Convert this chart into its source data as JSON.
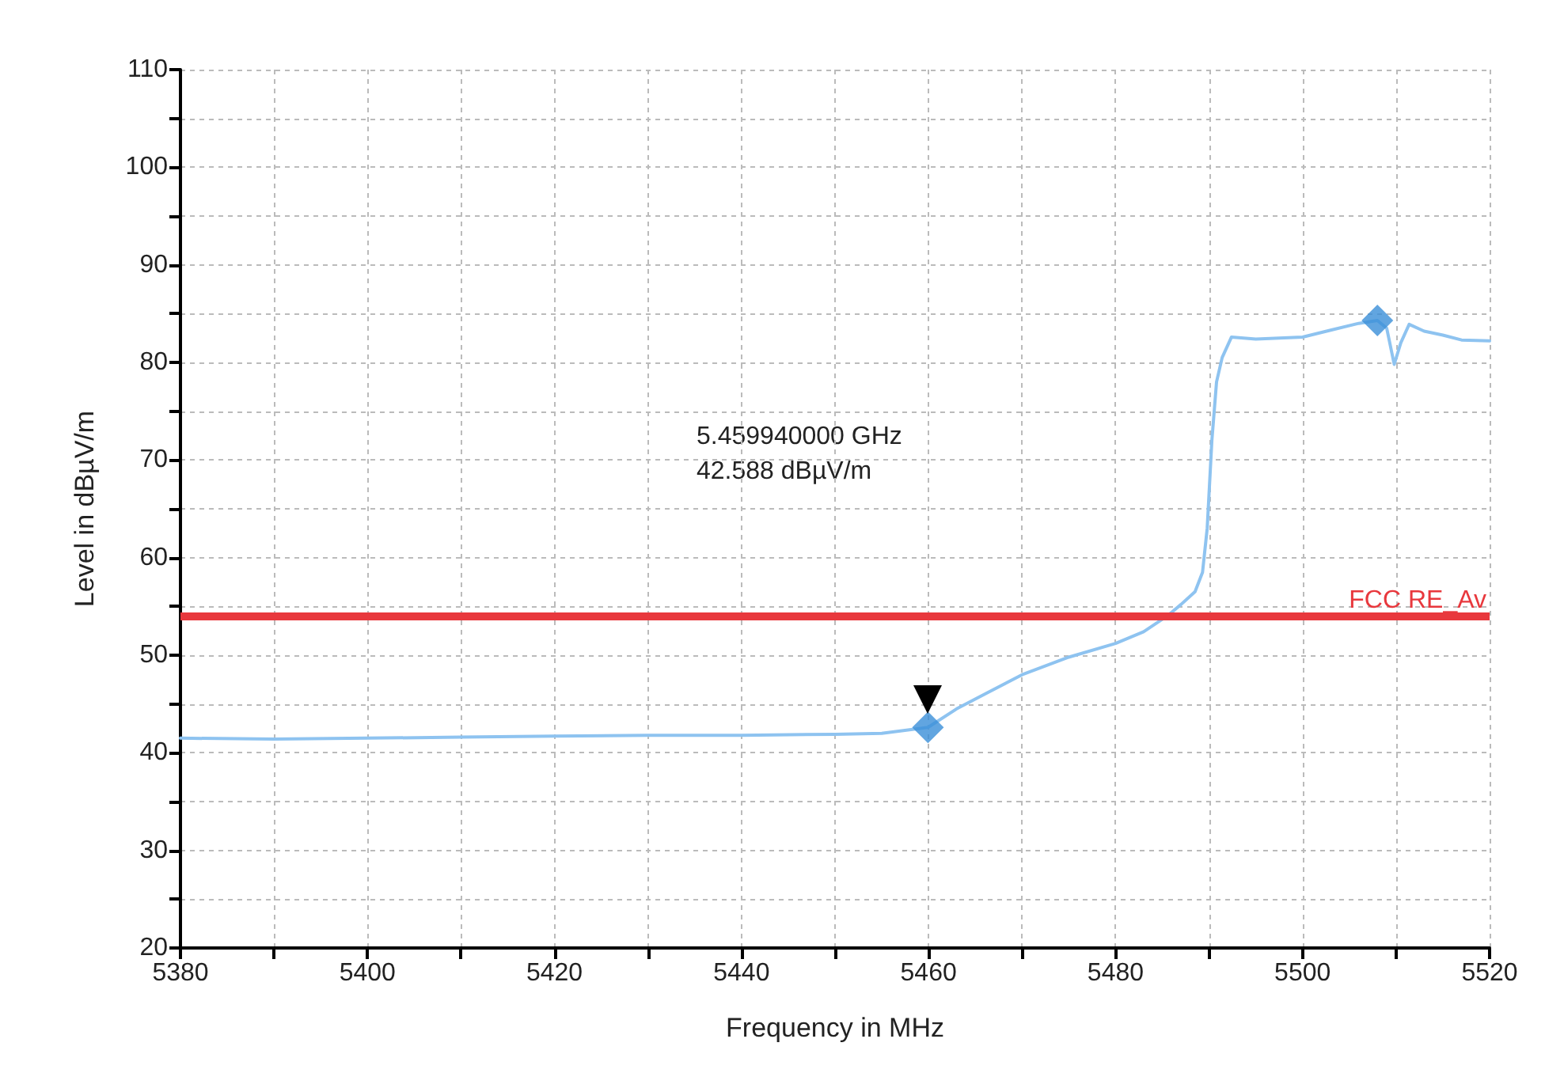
{
  "chart_data": {
    "type": "line",
    "xlabel": "Frequency in MHz",
    "ylabel": "Level in dBµV/m",
    "xlim": [
      5380,
      5520
    ],
    "ylim": [
      20,
      110
    ],
    "xticks": [
      5380,
      {
        "value": 5390,
        "label": null
      },
      5400,
      {
        "value": 5410,
        "label": null
      },
      5420,
      {
        "value": 5430,
        "label": null
      },
      5440,
      {
        "value": 5450,
        "label": null
      },
      5460,
      {
        "value": 5470,
        "label": null
      },
      5480,
      {
        "value": 5490,
        "label": null
      },
      5500,
      {
        "value": 5510,
        "label": null
      },
      5520
    ],
    "yticks": [
      20,
      {
        "value": 25,
        "label": null
      },
      30,
      {
        "value": 35,
        "label": null
      },
      40,
      {
        "value": 45,
        "label": null
      },
      50,
      {
        "value": 55,
        "label": null
      },
      60,
      {
        "value": 65,
        "label": null
      },
      70,
      {
        "value": 75,
        "label": null
      },
      80,
      {
        "value": 85,
        "label": null
      },
      90,
      {
        "value": 95,
        "label": null
      },
      100,
      {
        "value": 105,
        "label": null
      },
      110
    ],
    "grid": true,
    "marker": "none",
    "line_style": "solid",
    "series": [
      {
        "color": "#8ec3f0",
        "x": [
          5380,
          5390,
          5400,
          5410,
          5420,
          5430,
          5440,
          5450,
          5455,
          5459.94,
          5463,
          5466,
          5470,
          5475,
          5480,
          5483,
          5485.5,
          5487,
          5488.5,
          5489.3,
          5489.8,
          5490.3,
          5490.8,
          5491.4,
          5492.4,
          5495,
          5500,
          5503,
          5506,
          5508,
          5509,
          5509.8,
          5510.5,
          5511.4,
          5513,
          5515,
          5517,
          5520
        ],
        "values": [
          41.5,
          41.4,
          41.5,
          41.6,
          41.7,
          41.8,
          41.8,
          41.9,
          42.0,
          42.6,
          44.5,
          46.0,
          48.0,
          49.8,
          51.2,
          52.4,
          54.0,
          55.2,
          56.5,
          58.5,
          63,
          72,
          78,
          80.5,
          82.6,
          82.4,
          82.6,
          83.3,
          84.0,
          84.3,
          83.5,
          79.8,
          82,
          83.9,
          83.2,
          82.8,
          82.3,
          82.2
        ]
      },
      {
        "type": "scatter",
        "marker": "diamond",
        "color": "#3a8fd8",
        "x": [
          5459.94,
          5508
        ],
        "values": [
          42.6,
          84.3
        ]
      }
    ],
    "ref_lines": [
      {
        "axis": "y",
        "value": 54,
        "label": "FCC RE_Av",
        "color": "#e8383d",
        "line_style": "solid"
      }
    ],
    "annotations": [
      "5.459940000 GHz",
      "42.588 dBµV/m"
    ]
  }
}
